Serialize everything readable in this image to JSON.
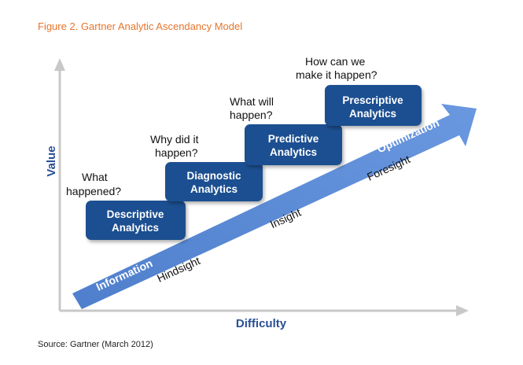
{
  "figure_title": "Figure 2. Gartner Analytic Ascendancy Model",
  "source": "Source: Gartner (March 2012)",
  "axes": {
    "y_label": "Value",
    "x_label": "Difficulty"
  },
  "stages": [
    {
      "question": [
        "What",
        "happened?"
      ],
      "box": [
        "Descriptive",
        "Analytics"
      ]
    },
    {
      "question": [
        "Why did it",
        "happen?"
      ],
      "box": [
        "Diagnostic",
        "Analytics"
      ]
    },
    {
      "question": [
        "What will",
        "happen?"
      ],
      "box": [
        "Predictive",
        "Analytics"
      ]
    },
    {
      "question": [
        "How can we",
        "make it happen?"
      ],
      "box": [
        "Prescriptive",
        "Analytics"
      ]
    }
  ],
  "arrow_labels": {
    "start": "Information",
    "end": "Optimization"
  },
  "below_arrow_labels": [
    "Hindsight",
    "Insight",
    "Foresight"
  ],
  "colors": {
    "title": "#e8742b",
    "box_fill": "#1d4f91",
    "arrow_fill": "#5a8ad6",
    "axis": "#c8c8c8",
    "axis_label": "#2a4f96"
  }
}
